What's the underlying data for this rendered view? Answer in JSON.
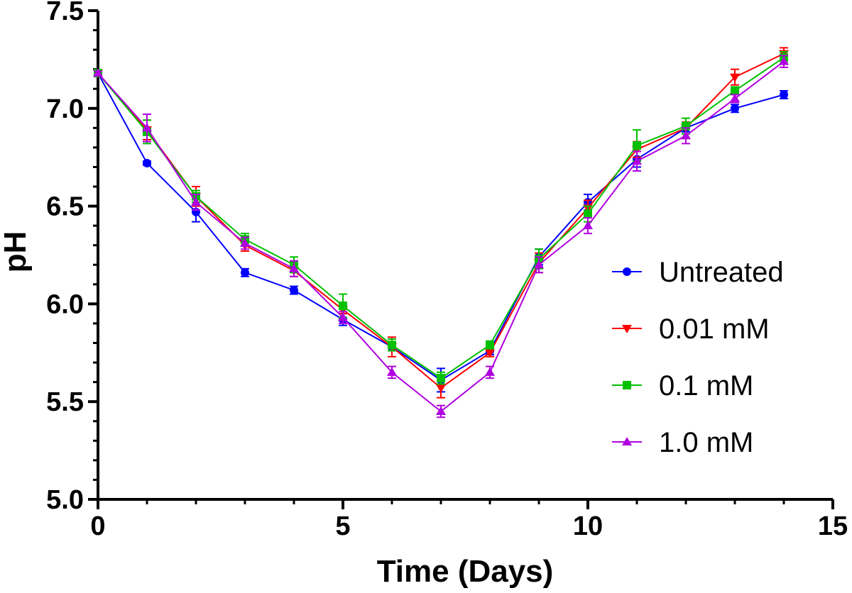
{
  "chart_data": {
    "type": "line",
    "title": "",
    "xlabel": "Time (Days)",
    "ylabel": "pH",
    "xlim": [
      0,
      15
    ],
    "ylim": [
      5.0,
      7.5
    ],
    "x_major_ticks": [
      "0",
      "5",
      "10",
      "15"
    ],
    "y_major_ticks": [
      "5.0",
      "5.5",
      "6.0",
      "6.5",
      "7.0",
      "7.5"
    ],
    "legend_position": "right",
    "x": [
      0,
      1,
      2,
      3,
      4,
      5,
      6,
      7,
      8,
      9,
      10,
      11,
      12,
      13,
      14
    ],
    "series": [
      {
        "name": "Untreated",
        "color": "#0000ff",
        "marker": "circle",
        "values": [
          7.18,
          6.72,
          6.47,
          6.16,
          6.07,
          5.92,
          5.78,
          5.61,
          5.76,
          6.24,
          6.52,
          6.74,
          6.9,
          7.0,
          7.07
        ],
        "errors": [
          0.01,
          0.01,
          0.05,
          0.02,
          0.02,
          0.03,
          0.02,
          0.06,
          0.02,
          0.04,
          0.04,
          0.04,
          0.02,
          0.02,
          0.02
        ]
      },
      {
        "name": "0.01 mM",
        "color": "#ff0000",
        "marker": "triangle-down",
        "values": [
          7.18,
          6.89,
          6.55,
          6.3,
          6.17,
          5.97,
          5.78,
          5.57,
          5.75,
          6.21,
          6.49,
          6.79,
          6.9,
          7.16,
          7.28
        ],
        "errors": [
          0.01,
          0.05,
          0.05,
          0.03,
          0.03,
          0.02,
          0.05,
          0.05,
          0.02,
          0.05,
          0.04,
          0.04,
          0.03,
          0.04,
          0.03
        ]
      },
      {
        "name": "0.1 mM",
        "color": "#00c000",
        "marker": "square",
        "values": [
          7.18,
          6.88,
          6.55,
          6.33,
          6.2,
          5.99,
          5.79,
          5.62,
          5.79,
          6.23,
          6.46,
          6.81,
          6.91,
          7.09,
          7.26
        ],
        "errors": [
          0.01,
          0.06,
          0.03,
          0.03,
          0.04,
          0.06,
          0.03,
          0.03,
          0.02,
          0.05,
          0.04,
          0.08,
          0.04,
          0.02,
          0.03
        ]
      },
      {
        "name": "1.0 mM",
        "color": "#b000e0",
        "marker": "triangle-up",
        "values": [
          7.18,
          6.9,
          6.52,
          6.31,
          6.18,
          5.93,
          5.65,
          5.45,
          5.65,
          6.2,
          6.4,
          6.73,
          6.86,
          7.05,
          7.24
        ],
        "errors": [
          0.01,
          0.07,
          0.04,
          0.03,
          0.04,
          0.03,
          0.03,
          0.03,
          0.03,
          0.04,
          0.04,
          0.05,
          0.04,
          0.02,
          0.03
        ]
      }
    ]
  }
}
